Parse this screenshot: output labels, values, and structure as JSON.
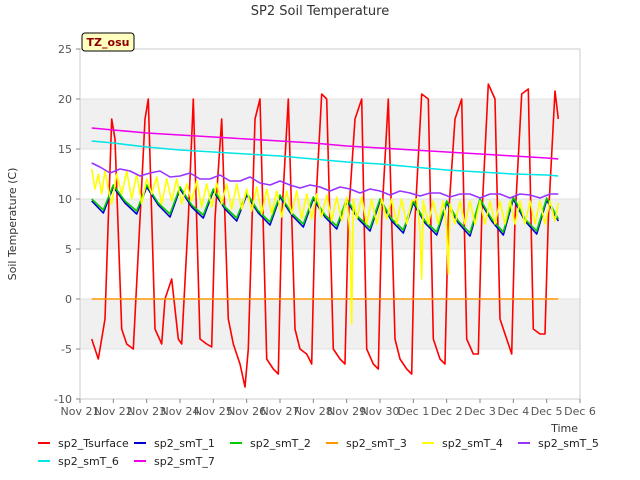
{
  "chart_data": {
    "type": "line",
    "title": "SP2 Soil Temperature",
    "xlabel": "Time",
    "ylabel": "Soil Temperature (C)",
    "ylim": [
      -10,
      25
    ],
    "yticks": [
      -10,
      -5,
      0,
      5,
      10,
      15,
      20,
      25
    ],
    "xlim": [
      0,
      15
    ],
    "xticks": [
      {
        "value": 0,
        "label": "Nov 21"
      },
      {
        "value": 1,
        "label": "Nov 22"
      },
      {
        "value": 2,
        "label": "Nov 23"
      },
      {
        "value": 3,
        "label": "Nov 24"
      },
      {
        "value": 4,
        "label": "Nov 25"
      },
      {
        "value": 5,
        "label": "Nov 26"
      },
      {
        "value": 6,
        "label": "Nov 27"
      },
      {
        "value": 7,
        "label": "Nov 28"
      },
      {
        "value": 8,
        "label": "Nov 29"
      },
      {
        "value": 9,
        "label": "Nov 30"
      },
      {
        "value": 10,
        "label": "Dec 1"
      },
      {
        "value": 11,
        "label": "Dec 2"
      },
      {
        "value": 12,
        "label": "Dec 3"
      },
      {
        "value": 13,
        "label": "Dec 4"
      },
      {
        "value": 14,
        "label": "Dec 5"
      },
      {
        "value": 15,
        "label": "Dec 6"
      }
    ],
    "badge": "TZ_osu",
    "legend_position": "bottom",
    "series": [
      {
        "name": "sp2_Tsurface",
        "color": "#ff0000",
        "x": [
          0.35,
          0.55,
          0.75,
          0.85,
          0.95,
          1.05,
          1.25,
          1.4,
          1.6,
          1.8,
          1.95,
          2.05,
          2.25,
          2.45,
          2.55,
          2.75,
          2.95,
          3.05,
          3.25,
          3.4,
          3.6,
          3.8,
          3.95,
          4.05,
          4.25,
          4.45,
          4.6,
          4.8,
          4.95,
          5.05,
          5.25,
          5.4,
          5.6,
          5.8,
          5.95,
          6.05,
          6.25,
          6.45,
          6.6,
          6.8,
          6.95,
          7.05,
          7.25,
          7.4,
          7.6,
          7.8,
          7.95,
          8.05,
          8.25,
          8.45,
          8.6,
          8.8,
          8.95,
          9.05,
          9.25,
          9.45,
          9.6,
          9.8,
          9.95,
          10.05,
          10.25,
          10.45,
          10.6,
          10.8,
          10.95,
          11.05,
          11.25,
          11.45,
          11.6,
          11.8,
          11.95,
          12.05,
          12.25,
          12.45,
          12.6,
          12.8,
          12.95,
          13.05,
          13.25,
          13.45,
          13.6,
          13.8,
          13.95,
          14.05,
          14.25,
          14.35
        ],
        "y": [
          -4,
          -6,
          -2,
          8,
          18,
          16,
          -3,
          -4.5,
          -5,
          8,
          18,
          20,
          -3,
          -4.5,
          0,
          2,
          -4,
          -4.5,
          8,
          20,
          -4,
          -4.5,
          -4.8,
          8,
          18,
          -2,
          -4.5,
          -6.5,
          -8.8,
          -5,
          18,
          20,
          -6,
          -7,
          -7.5,
          8,
          20,
          -3,
          -5,
          -5.5,
          -6.5,
          8,
          20.5,
          20,
          -5,
          -6,
          -6.5,
          8,
          18,
          20,
          -5,
          -6.5,
          -7,
          8,
          20,
          -4,
          -6,
          -7,
          -7.5,
          8,
          20.5,
          20,
          -4,
          -6,
          -6.5,
          8,
          18,
          20,
          -4,
          -5.5,
          -5.5,
          8,
          21.5,
          20,
          -2,
          -4,
          -5.5,
          8,
          20.5,
          21,
          -3,
          -3.5,
          -3.5,
          8,
          20.8,
          18
        ]
      },
      {
        "name": "sp2_smT_1",
        "color": "#0000cc",
        "x": [
          0.35,
          0.7,
          1.0,
          1.35,
          1.7,
          2.0,
          2.35,
          2.7,
          3.0,
          3.35,
          3.7,
          4.0,
          4.35,
          4.7,
          5.0,
          5.35,
          5.7,
          6.0,
          6.35,
          6.7,
          7.0,
          7.35,
          7.7,
          8.0,
          8.35,
          8.7,
          9.0,
          9.35,
          9.7,
          10.0,
          10.35,
          10.7,
          11.0,
          11.35,
          11.7,
          12.0,
          12.35,
          12.7,
          13.0,
          13.35,
          13.7,
          14.0,
          14.35
        ],
        "y": [
          9.8,
          8.6,
          11.2,
          9.6,
          8.5,
          11.2,
          9.4,
          8.2,
          11,
          9.2,
          8.1,
          10.8,
          9,
          7.8,
          10.4,
          8.6,
          7.4,
          10.2,
          8.4,
          7.2,
          10,
          8.2,
          7,
          9.8,
          8,
          6.8,
          9.8,
          7.8,
          6.6,
          9.6,
          7.6,
          6.4,
          9.6,
          7.6,
          6.3,
          9.8,
          7.8,
          6.4,
          10,
          7.8,
          6.5,
          9.9,
          7.8
        ]
      },
      {
        "name": "sp2_smT_2",
        "color": "#00cc00",
        "x": [
          0.35,
          0.7,
          1.0,
          1.35,
          1.7,
          2.0,
          2.35,
          2.7,
          3.0,
          3.35,
          3.7,
          4.0,
          4.35,
          4.7,
          5.0,
          5.35,
          5.7,
          6.0,
          6.35,
          6.7,
          7.0,
          7.35,
          7.7,
          8.0,
          8.35,
          8.7,
          9.0,
          9.35,
          9.7,
          10.0,
          10.35,
          10.7,
          11.0,
          11.35,
          11.7,
          12.0,
          12.35,
          12.7,
          13.0,
          13.35,
          13.7,
          14.0,
          14.35
        ],
        "y": [
          10,
          8.9,
          11.4,
          9.8,
          8.8,
          11.4,
          9.6,
          8.5,
          11.2,
          9.4,
          8.4,
          11,
          9.2,
          8.1,
          10.6,
          8.8,
          7.7,
          10.4,
          8.6,
          7.5,
          10.2,
          8.4,
          7.3,
          10,
          8.2,
          7.1,
          10,
          8,
          6.9,
          9.8,
          7.8,
          6.7,
          9.8,
          7.8,
          6.6,
          10,
          8,
          6.7,
          10.2,
          8,
          6.8,
          10.1,
          8
        ]
      },
      {
        "name": "sp2_smT_3",
        "color": "#ff9900",
        "x": [
          0.35,
          2,
          4,
          6,
          8,
          10,
          12,
          14.35
        ],
        "y": [
          0,
          0,
          0,
          0,
          0,
          0,
          0,
          0
        ]
      },
      {
        "name": "sp2_smT_4",
        "color": "#ffff00",
        "x": [
          0.35,
          0.45,
          0.55,
          0.65,
          0.75,
          0.85,
          0.95,
          1.1,
          1.25,
          1.4,
          1.55,
          1.7,
          1.85,
          2.0,
          2.15,
          2.3,
          2.45,
          2.6,
          2.75,
          2.9,
          3.05,
          3.2,
          3.35,
          3.5,
          3.65,
          3.8,
          3.95,
          4.1,
          4.25,
          4.4,
          4.55,
          4.7,
          4.85,
          5.0,
          5.15,
          5.3,
          5.45,
          5.6,
          5.75,
          5.9,
          6.05,
          6.2,
          6.35,
          6.5,
          6.65,
          6.8,
          6.95,
          7.1,
          7.25,
          7.4,
          7.55,
          7.7,
          7.85,
          8.0,
          8.1,
          8.15,
          8.2,
          8.3,
          8.45,
          8.6,
          8.75,
          8.9,
          9.05,
          9.2,
          9.35,
          9.5,
          9.65,
          9.8,
          9.95,
          10.1,
          10.2,
          10.25,
          10.3,
          10.45,
          10.6,
          10.75,
          10.9,
          11.0,
          11.05,
          11.1,
          11.25,
          11.4,
          11.55,
          11.7,
          11.85,
          12.0,
          12.15,
          12.3,
          12.45,
          12.6,
          12.75,
          12.9,
          13.05,
          13.2,
          13.35,
          13.5,
          13.65,
          13.8,
          13.95,
          14.1,
          14.25,
          14.35
        ],
        "y": [
          13,
          11,
          12.5,
          10.5,
          12.8,
          11,
          9.5,
          12.5,
          10.5,
          12.8,
          10,
          12.5,
          9.5,
          12,
          10.5,
          12.2,
          9.5,
          12,
          9.8,
          12,
          9.5,
          11.5,
          9.8,
          11.8,
          9.2,
          11.5,
          9.2,
          11.6,
          9.5,
          11.5,
          9,
          11.5,
          9,
          11,
          8.8,
          11.2,
          8.5,
          11,
          8.5,
          10.8,
          8.2,
          10.8,
          8.5,
          10.8,
          8,
          10.5,
          8,
          10.5,
          8.2,
          10.4,
          7.8,
          10.2,
          7.8,
          10.2,
          6.5,
          -2.5,
          10,
          8,
          10.2,
          7.5,
          10,
          7.5,
          10,
          8,
          10,
          7.5,
          10,
          7.5,
          9.8,
          10,
          7,
          2,
          9.8,
          7.5,
          9.8,
          7.5,
          9.8,
          7,
          2.5,
          9.5,
          7.5,
          9.8,
          7.5,
          9.8,
          7.5,
          9.8,
          7.5,
          9.8,
          7.5,
          9.8,
          7.5,
          9.8,
          7.5,
          9.8,
          7.5,
          9.8,
          7.5,
          9.8,
          7.5,
          9.8,
          7.8,
          9.6
        ]
      },
      {
        "name": "sp2_smT_5",
        "color": "#9933ff",
        "x": [
          0.35,
          0.6,
          0.9,
          1.2,
          1.5,
          1.8,
          2.1,
          2.4,
          2.7,
          3.0,
          3.3,
          3.6,
          3.9,
          4.2,
          4.5,
          4.8,
          5.1,
          5.4,
          5.7,
          6.0,
          6.3,
          6.6,
          6.9,
          7.2,
          7.5,
          7.8,
          8.1,
          8.4,
          8.7,
          9.0,
          9.3,
          9.6,
          9.9,
          10.2,
          10.5,
          10.8,
          11.1,
          11.4,
          11.7,
          12.0,
          12.3,
          12.6,
          12.9,
          13.2,
          13.5,
          13.8,
          14.1,
          14.35
        ],
        "y": [
          13.6,
          13.2,
          12.6,
          13,
          12.8,
          12.3,
          12.6,
          12.8,
          12.2,
          12.3,
          12.6,
          12,
          12,
          12.4,
          11.8,
          11.8,
          12.2,
          11.6,
          11.4,
          11.8,
          11.4,
          11.1,
          11.4,
          11.2,
          10.8,
          11.2,
          11,
          10.6,
          11,
          10.8,
          10.4,
          10.8,
          10.6,
          10.3,
          10.6,
          10.6,
          10.2,
          10.5,
          10.5,
          10.1,
          10.5,
          10.5,
          10.1,
          10.5,
          10.4,
          10.1,
          10.5,
          10.5
        ]
      },
      {
        "name": "sp2_smT_6",
        "color": "#00e5e5",
        "x": [
          0.35,
          1,
          2,
          3,
          4,
          5,
          6,
          7,
          8,
          9,
          10,
          11,
          12,
          13,
          14,
          14.35
        ],
        "y": [
          15.8,
          15.6,
          15.2,
          14.9,
          14.7,
          14.5,
          14.3,
          14,
          13.7,
          13.5,
          13.2,
          12.9,
          12.7,
          12.5,
          12.4,
          12.3
        ]
      },
      {
        "name": "sp2_smT_7",
        "color": "#ee00ee",
        "x": [
          0.35,
          1,
          2,
          3,
          4,
          5,
          6,
          7,
          8,
          9,
          10,
          11,
          12,
          13,
          14,
          14.35
        ],
        "y": [
          17.1,
          16.9,
          16.6,
          16.4,
          16.2,
          16,
          15.8,
          15.6,
          15.3,
          15.1,
          14.9,
          14.7,
          14.5,
          14.3,
          14.1,
          14
        ]
      }
    ]
  }
}
